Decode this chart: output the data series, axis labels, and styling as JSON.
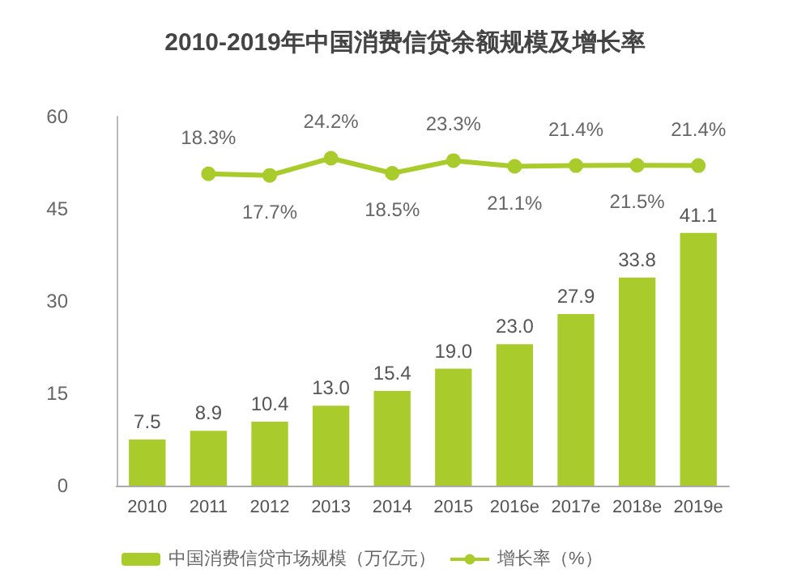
{
  "chart_data": {
    "type": "bar",
    "title": "2010-2019年中国消费信贷余额规模及增长率",
    "categories": [
      "2010",
      "2011",
      "2012",
      "2013",
      "2014",
      "2015",
      "2016e",
      "2017e",
      "2018e",
      "2019e"
    ],
    "series": [
      {
        "name": "中国消费信贷市场规模（万亿元）",
        "color": "#a9cb2c",
        "values": [
          7.5,
          8.9,
          10.4,
          13.0,
          15.4,
          19.0,
          23.0,
          27.9,
          33.8,
          41.1
        ],
        "value_labels": [
          "7.5",
          "8.9",
          "10.4",
          "13.0",
          "15.4",
          "19.0",
          "23.0",
          "27.9",
          "33.8",
          "41.1"
        ]
      },
      {
        "name": "增长率（%）",
        "type": "line",
        "axis": "y2",
        "color": "#a9cb2c",
        "marker": "circle",
        "values": [
          null,
          18.3,
          17.7,
          24.2,
          18.5,
          23.3,
          21.1,
          21.4,
          21.5,
          21.4
        ],
        "value_labels": [
          null,
          "18.3%",
          "17.7%",
          "24.2%",
          "18.5%",
          "23.3%",
          "21.1%",
          "21.4%",
          "21.5%",
          "21.4%"
        ]
      }
    ],
    "ylim": [
      0,
      60
    ],
    "yticks": [
      0,
      15,
      30,
      45,
      60
    ],
    "y2lim": [
      -100,
      40
    ],
    "grid": false,
    "legend": "bottom",
    "tick_labels": "xy"
  }
}
